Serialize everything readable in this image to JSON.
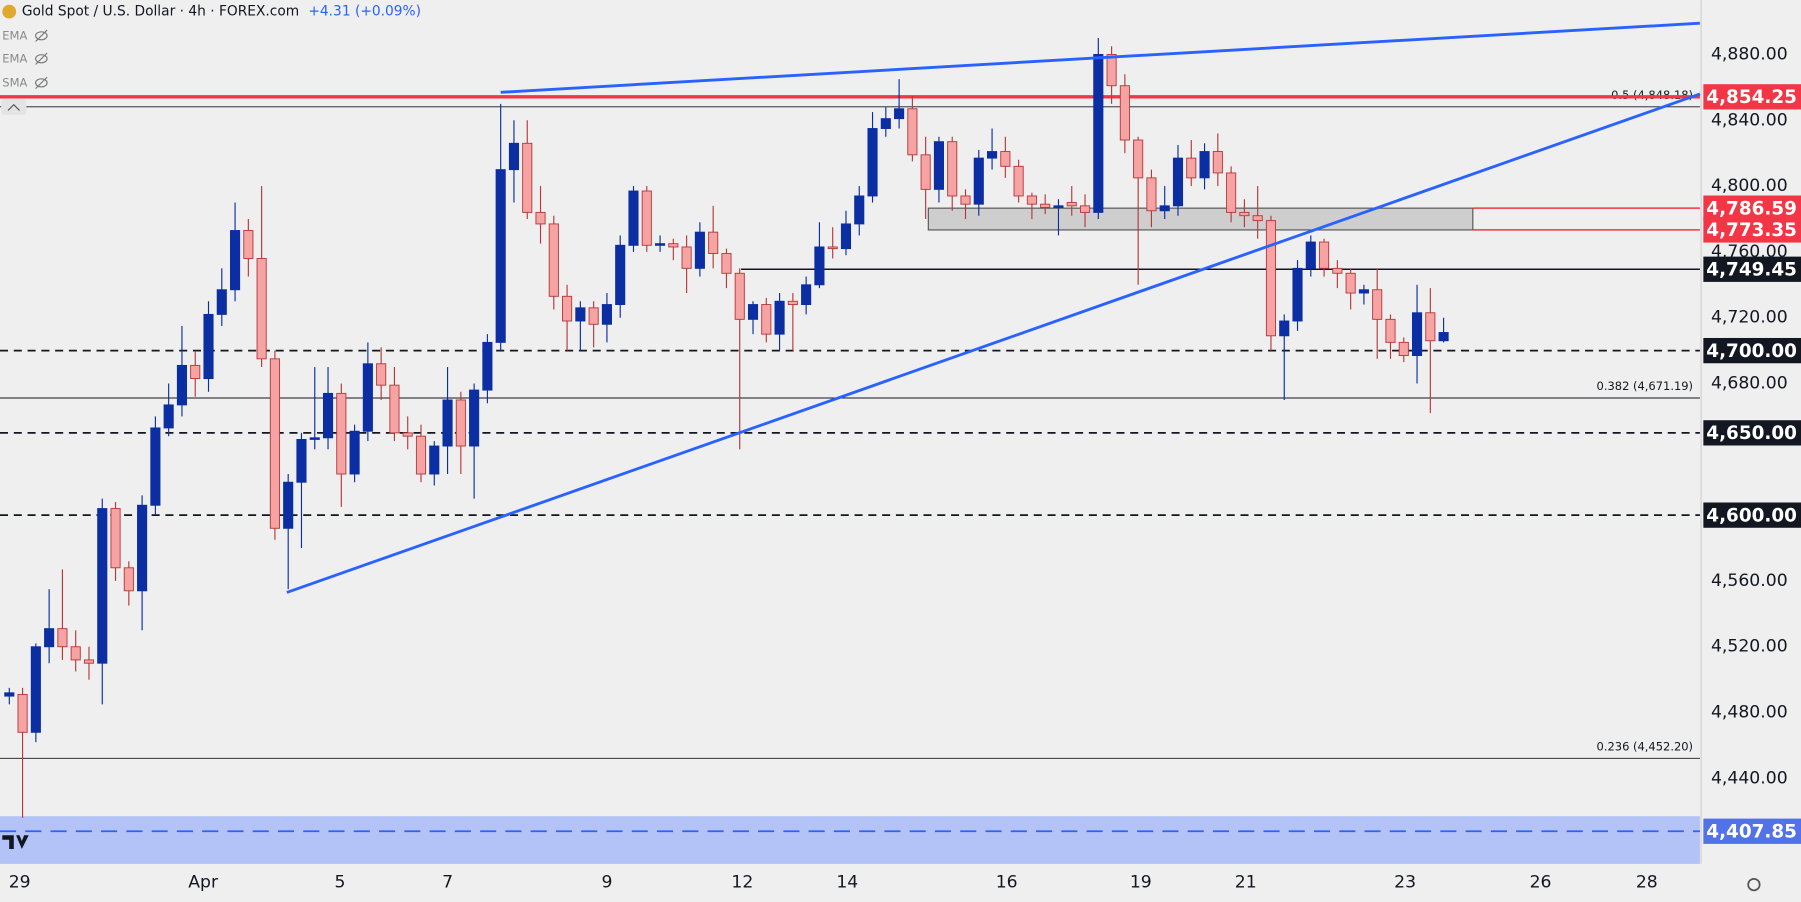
{
  "chart_data": {
    "type": "candlestick",
    "title": "Gold Spot / U.S. Dollar · 4h · FOREX.com",
    "change": "+4.31 (+0.09%)",
    "indicators": [
      "EMA",
      "EMA",
      "SMA"
    ],
    "up_color": "#0b2fa3",
    "down_color": "#f5a3a3",
    "down_edge": "#b8383a",
    "trend_color": "#2962ff",
    "open": [
      4490,
      4491,
      4468,
      4520,
      4531,
      4520,
      4512,
      4510,
      4604,
      4568,
      4554,
      4606,
      4653,
      4667,
      4691,
      4683,
      4722,
      4737,
      4773,
      4756,
      4695,
      4592,
      4620,
      4646,
      4647,
      4674,
      4625,
      4651,
      4692,
      4679,
      4650,
      4648,
      4625,
      4642,
      4670,
      4642,
      4676,
      4705,
      4810,
      4826,
      4784,
      4777,
      4733,
      4718,
      4726,
      4716,
      4728,
      4764,
      4797,
      4764,
      4765,
      4763,
      4750,
      4772,
      4759,
      4747,
      4719,
      4728,
      4710,
      4730,
      4728,
      4740,
      4763,
      4762,
      4777,
      4794,
      4835,
      4841,
      4847,
      4819,
      4798,
      4827,
      4794,
      4789,
      4817,
      4821,
      4812,
      4794,
      4789,
      4787,
      4790,
      4788,
      4784,
      4880,
      4861,
      4828,
      4805,
      4785,
      4788,
      4817,
      4805,
      4821,
      4808,
      4784,
      4782,
      4779,
      4709,
      4718,
      4750,
      4766,
      4750,
      4747,
      4735,
      4737,
      4719,
      4705,
      4697,
      4723,
      4706
    ],
    "high": [
      4495,
      4495,
      4522,
      4555,
      4567,
      4530,
      4520,
      4610,
      4608,
      4572,
      4612,
      4660,
      4680,
      4715,
      4700,
      4730,
      4750,
      4790,
      4780,
      4800,
      4700,
      4625,
      4650,
      4690,
      4690,
      4680,
      4655,
      4705,
      4702,
      4690,
      4660,
      4655,
      4645,
      4690,
      4675,
      4680,
      4710,
      4850,
      4840,
      4840,
      4800,
      4782,
      4740,
      4730,
      4730,
      4735,
      4770,
      4800,
      4800,
      4770,
      4768,
      4770,
      4778,
      4788,
      4762,
      4750,
      4730,
      4732,
      4735,
      4735,
      4745,
      4778,
      4775,
      4785,
      4800,
      4845,
      4848,
      4865,
      4855,
      4830,
      4830,
      4830,
      4798,
      4822,
      4835,
      4830,
      4816,
      4796,
      4795,
      4792,
      4800,
      4795,
      4890,
      4885,
      4868,
      4830,
      4810,
      4800,
      4825,
      4828,
      4826,
      4832,
      4812,
      4792,
      4800,
      4782,
      4722,
      4755,
      4770,
      4768,
      4755,
      4750,
      4740,
      4750,
      4722,
      4708,
      4740,
      4738,
      4720
    ],
    "low": [
      4485,
      4416,
      4462,
      4510,
      4512,
      4505,
      4500,
      4485,
      4560,
      4545,
      4530,
      4600,
      4648,
      4660,
      4672,
      4675,
      4715,
      4730,
      4745,
      4690,
      4585,
      4555,
      4580,
      4640,
      4640,
      4605,
      4620,
      4645,
      4670,
      4645,
      4640,
      4620,
      4618,
      4625,
      4625,
      4610,
      4668,
      4700,
      4790,
      4780,
      4765,
      4725,
      4700,
      4700,
      4702,
      4705,
      4720,
      4760,
      4760,
      4760,
      4755,
      4735,
      4745,
      4750,
      4738,
      4640,
      4710,
      4705,
      4700,
      4700,
      4722,
      4738,
      4756,
      4758,
      4770,
      4790,
      4830,
      4835,
      4815,
      4780,
      4790,
      4785,
      4780,
      4782,
      4810,
      4805,
      4790,
      4780,
      4783,
      4770,
      4782,
      4775,
      4780,
      4850,
      4820,
      4740,
      4775,
      4780,
      4782,
      4800,
      4798,
      4800,
      4778,
      4775,
      4768,
      4700,
      4670,
      4712,
      4745,
      4745,
      4738,
      4725,
      4728,
      4695,
      4695,
      4693,
      4680,
      4662,
      4705
    ],
    "close": [
      4492,
      4468,
      4520,
      4531,
      4520,
      4512,
      4510,
      4604,
      4568,
      4554,
      4606,
      4653,
      4667,
      4691,
      4683,
      4722,
      4737,
      4773,
      4756,
      4695,
      4592,
      4620,
      4646,
      4647,
      4674,
      4625,
      4651,
      4692,
      4679,
      4650,
      4648,
      4625,
      4642,
      4670,
      4642,
      4676,
      4705,
      4810,
      4826,
      4784,
      4777,
      4733,
      4718,
      4726,
      4716,
      4728,
      4764,
      4797,
      4764,
      4765,
      4763,
      4750,
      4772,
      4759,
      4747,
      4719,
      4728,
      4710,
      4730,
      4728,
      4740,
      4763,
      4762,
      4777,
      4794,
      4835,
      4841,
      4847,
      4819,
      4798,
      4827,
      4794,
      4789,
      4817,
      4821,
      4812,
      4794,
      4789,
      4787,
      4788,
      4788,
      4784,
      4880,
      4861,
      4828,
      4805,
      4785,
      4788,
      4817,
      4805,
      4821,
      4808,
      4784,
      4782,
      4779,
      4709,
      4718,
      4750,
      4766,
      4750,
      4747,
      4735,
      4737,
      4719,
      4705,
      4697,
      4723,
      4706,
      4711
    ],
    "xlim": [
      -0.7,
      127.3
    ],
    "xticks": [
      {
        "value": 0.78,
        "label": "29"
      },
      {
        "value": 14.6,
        "label": "Apr"
      },
      {
        "value": 24.9,
        "label": "5"
      },
      {
        "value": 33.0,
        "label": "7"
      },
      {
        "value": 45.0,
        "label": "9"
      },
      {
        "value": 55.2,
        "label": "12"
      },
      {
        "value": 63.1,
        "label": "14"
      },
      {
        "value": 75.1,
        "label": "16"
      },
      {
        "value": 85.2,
        "label": "19"
      },
      {
        "value": 93.1,
        "label": "21"
      },
      {
        "value": 105.1,
        "label": "23"
      },
      {
        "value": 115.3,
        "label": "26"
      },
      {
        "value": 123.3,
        "label": "28"
      }
    ],
    "ylim": [
      4388,
      4913
    ],
    "yticks": [
      {
        "value": 4440,
        "label": "4,440.00"
      },
      {
        "value": 4480,
        "label": "4,480.00"
      },
      {
        "value": 4520,
        "label": "4,520.00"
      },
      {
        "value": 4560,
        "label": "4,560.00"
      },
      {
        "value": 4680,
        "label": "4,680.00"
      },
      {
        "value": 4720,
        "label": "4,720.00"
      },
      {
        "value": 4760,
        "label": "4,760.00"
      },
      {
        "value": 4800,
        "label": "4,800.00"
      },
      {
        "value": 4840,
        "label": "4,840.00"
      },
      {
        "value": 4880,
        "label": "4,880.00"
      }
    ],
    "zones": [
      {
        "x": [
          69.2,
          110.2
        ],
        "y": [
          4773.35,
          4786.59
        ],
        "color": "#c8c8c8"
      },
      {
        "y": [
          4388,
          4417
        ],
        "color": "#b3c3f7"
      }
    ],
    "trendlines": [
      {
        "x": [
          37.0,
          127.3
        ],
        "y": [
          4857,
          4899
        ]
      },
      {
        "x": [
          20.9,
          127.3
        ],
        "y": [
          4553,
          4856
        ]
      }
    ],
    "fibs": [
      {
        "value": 4848.18,
        "label": "0.5 (4,848.18)"
      },
      {
        "value": 4671.19,
        "label": "0.382 (4,671.19)"
      },
      {
        "value": 4452.2,
        "label": "0.236 (4,452.20)"
      }
    ],
    "levels": [
      {
        "value": 4854.25,
        "label": "4,854.25",
        "color": "#f23645",
        "style": "thick"
      },
      {
        "value": 4786.59,
        "label": "4,786.59",
        "color": "#f23645",
        "style": "solid",
        "from": 110.2
      },
      {
        "value": 4773.35,
        "label": "4,773.35",
        "color": "#f23645",
        "style": "solid",
        "from": 110.2
      },
      {
        "value": 4749.45,
        "label": "4,749.45",
        "color": "#131722",
        "style": "solid",
        "from": 55.1
      },
      {
        "value": 4700.0,
        "label": "4,700.00",
        "color": "#131722",
        "style": "dashed"
      },
      {
        "value": 4650.0,
        "label": "4,650.00",
        "color": "#131722",
        "style": "dashed"
      },
      {
        "value": 4600.0,
        "label": "4,600.00",
        "color": "#131722",
        "style": "dashed"
      },
      {
        "value": 4407.85,
        "label": "4,407.85",
        "color": "#2962ff",
        "box": "#5273e8",
        "style": "dashed"
      }
    ]
  }
}
